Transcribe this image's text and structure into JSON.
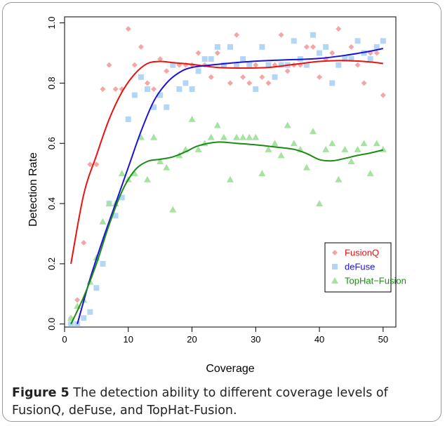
{
  "chart_data": {
    "type": "scatter",
    "xlabel": "Coverage",
    "ylabel": "Detection Rate",
    "xlim": [
      0,
      52
    ],
    "ylim": [
      -0.01,
      1.02
    ],
    "x_ticks": [
      0,
      10,
      20,
      30,
      40,
      50
    ],
    "y_ticks": [
      0.0,
      0.2,
      0.4,
      0.6,
      0.8,
      1.0
    ],
    "y_tick_labels": [
      "0.0",
      "0.2",
      "0.4",
      "0.6",
      "0.8",
      "1.0"
    ],
    "grid": false,
    "legend_position": "bottom-right",
    "series": [
      {
        "name": "FusionQ",
        "marker": "diamond",
        "point_color": "#f4a6a6",
        "line_color": "#e8130f",
        "points": [
          [
            1,
            0.02
          ],
          [
            2,
            0.08
          ],
          [
            3,
            0.27
          ],
          [
            4,
            0.53
          ],
          [
            5,
            0.53
          ],
          [
            6,
            0.78
          ],
          [
            7,
            0.86
          ],
          [
            8,
            0.78
          ],
          [
            9,
            0.78
          ],
          [
            10,
            0.98
          ],
          [
            11,
            0.86
          ],
          [
            12,
            0.92
          ],
          [
            13,
            0.8
          ],
          [
            14,
            0.78
          ],
          [
            15,
            0.88
          ],
          [
            16,
            0.84
          ],
          [
            17,
            0.86
          ],
          [
            18,
            0.86
          ],
          [
            19,
            0.86
          ],
          [
            20,
            0.86
          ],
          [
            21,
            0.9
          ],
          [
            22,
            0.86
          ],
          [
            23,
            0.82
          ],
          [
            24,
            0.9
          ],
          [
            25,
            0.86
          ],
          [
            26,
            0.8
          ],
          [
            27,
            0.96
          ],
          [
            28,
            0.82
          ],
          [
            29,
            0.8
          ],
          [
            30,
            0.86
          ],
          [
            31,
            0.82
          ],
          [
            32,
            0.8
          ],
          [
            33,
            0.86
          ],
          [
            34,
            0.96
          ],
          [
            35,
            0.84
          ],
          [
            36,
            0.86
          ],
          [
            37,
            0.86
          ],
          [
            38,
            0.92
          ],
          [
            39,
            0.92
          ],
          [
            40,
            0.82
          ],
          [
            41,
            0.88
          ],
          [
            42,
            0.9
          ],
          [
            43,
            0.98
          ],
          [
            44,
            0.88
          ],
          [
            45,
            0.92
          ],
          [
            46,
            0.86
          ],
          [
            47,
            0.8
          ],
          [
            48,
            0.9
          ],
          [
            49,
            0.9
          ],
          [
            50,
            0.76
          ]
        ],
        "fit": [
          [
            1,
            0.2
          ],
          [
            3,
            0.43
          ],
          [
            5,
            0.56
          ],
          [
            7,
            0.68
          ],
          [
            9,
            0.77
          ],
          [
            11,
            0.83
          ],
          [
            13,
            0.865
          ],
          [
            15,
            0.872
          ],
          [
            17,
            0.868
          ],
          [
            20,
            0.862
          ],
          [
            24,
            0.852
          ],
          [
            28,
            0.85
          ],
          [
            32,
            0.852
          ],
          [
            36,
            0.862
          ],
          [
            40,
            0.872
          ],
          [
            44,
            0.875
          ],
          [
            48,
            0.87
          ],
          [
            50,
            0.865
          ]
        ]
      },
      {
        "name": "deFuse",
        "marker": "square",
        "point_color": "#b3d6f7",
        "line_color": "#1a12d8",
        "points": [
          [
            1,
            0.0
          ],
          [
            2,
            0.0
          ],
          [
            3,
            0.02
          ],
          [
            4,
            0.04
          ],
          [
            5,
            0.12
          ],
          [
            6,
            0.2
          ],
          [
            7,
            0.4
          ],
          [
            8,
            0.36
          ],
          [
            9,
            0.42
          ],
          [
            10,
            0.68
          ],
          [
            11,
            0.76
          ],
          [
            12,
            0.82
          ],
          [
            13,
            0.78
          ],
          [
            14,
            0.72
          ],
          [
            15,
            0.76
          ],
          [
            16,
            0.72
          ],
          [
            17,
            0.86
          ],
          [
            18,
            0.78
          ],
          [
            19,
            0.8
          ],
          [
            20,
            0.78
          ],
          [
            21,
            0.84
          ],
          [
            22,
            0.88
          ],
          [
            23,
            0.88
          ],
          [
            24,
            0.92
          ],
          [
            25,
            0.86
          ],
          [
            26,
            0.92
          ],
          [
            27,
            0.86
          ],
          [
            28,
            0.88
          ],
          [
            29,
            0.86
          ],
          [
            30,
            0.78
          ],
          [
            31,
            0.92
          ],
          [
            32,
            0.86
          ],
          [
            33,
            0.82
          ],
          [
            34,
            0.86
          ],
          [
            35,
            0.86
          ],
          [
            36,
            0.94
          ],
          [
            37,
            0.88
          ],
          [
            38,
            0.86
          ],
          [
            39,
            0.96
          ],
          [
            40,
            0.9
          ],
          [
            41,
            0.92
          ],
          [
            42,
            0.8
          ],
          [
            43,
            0.86
          ],
          [
            44,
            0.88
          ],
          [
            45,
            0.88
          ],
          [
            46,
            0.94
          ],
          [
            47,
            0.9
          ],
          [
            48,
            0.88
          ],
          [
            49,
            0.92
          ],
          [
            50,
            0.94
          ]
        ],
        "fit": [
          [
            2,
            0.0
          ],
          [
            4,
            0.15
          ],
          [
            6,
            0.28
          ],
          [
            8,
            0.4
          ],
          [
            10,
            0.52
          ],
          [
            12,
            0.64
          ],
          [
            14,
            0.74
          ],
          [
            16,
            0.8
          ],
          [
            18,
            0.835
          ],
          [
            20,
            0.852
          ],
          [
            24,
            0.862
          ],
          [
            28,
            0.87
          ],
          [
            32,
            0.875
          ],
          [
            36,
            0.878
          ],
          [
            40,
            0.882
          ],
          [
            44,
            0.892
          ],
          [
            48,
            0.906
          ],
          [
            50,
            0.915
          ]
        ]
      },
      {
        "name": "TopHat−Fusion",
        "marker": "triangle",
        "point_color": "#a6e2a0",
        "line_color": "#1b8a14",
        "points": [
          [
            1,
            0.02
          ],
          [
            2,
            0.06
          ],
          [
            3,
            0.08
          ],
          [
            4,
            0.14
          ],
          [
            5,
            0.22
          ],
          [
            6,
            0.34
          ],
          [
            7,
            0.4
          ],
          [
            8,
            0.4
          ],
          [
            9,
            0.5
          ],
          [
            10,
            0.48
          ],
          [
            11,
            0.5
          ],
          [
            12,
            0.62
          ],
          [
            13,
            0.48
          ],
          [
            14,
            0.62
          ],
          [
            15,
            0.54
          ],
          [
            16,
            0.52
          ],
          [
            17,
            0.38
          ],
          [
            18,
            0.56
          ],
          [
            19,
            0.58
          ],
          [
            20,
            0.68
          ],
          [
            21,
            0.58
          ],
          [
            22,
            0.6
          ],
          [
            23,
            0.62
          ],
          [
            24,
            0.66
          ],
          [
            25,
            0.62
          ],
          [
            26,
            0.48
          ],
          [
            27,
            0.62
          ],
          [
            28,
            0.62
          ],
          [
            29,
            0.62
          ],
          [
            30,
            0.62
          ],
          [
            31,
            0.5
          ],
          [
            32,
            0.58
          ],
          [
            33,
            0.6
          ],
          [
            34,
            0.56
          ],
          [
            35,
            0.66
          ],
          [
            36,
            0.6
          ],
          [
            37,
            0.58
          ],
          [
            38,
            0.52
          ],
          [
            39,
            0.64
          ],
          [
            40,
            0.4
          ],
          [
            41,
            0.58
          ],
          [
            42,
            0.6
          ],
          [
            43,
            0.48
          ],
          [
            44,
            0.58
          ],
          [
            45,
            0.54
          ],
          [
            46,
            0.58
          ],
          [
            47,
            0.6
          ],
          [
            48,
            0.5
          ],
          [
            49,
            0.6
          ],
          [
            50,
            0.58
          ]
        ],
        "fit": [
          [
            1,
            0.0
          ],
          [
            3,
            0.09
          ],
          [
            5,
            0.2
          ],
          [
            7,
            0.33
          ],
          [
            9,
            0.44
          ],
          [
            11,
            0.51
          ],
          [
            13,
            0.54
          ],
          [
            15,
            0.547
          ],
          [
            17,
            0.555
          ],
          [
            19,
            0.572
          ],
          [
            21,
            0.592
          ],
          [
            24,
            0.604
          ],
          [
            27,
            0.6
          ],
          [
            30,
            0.595
          ],
          [
            33,
            0.588
          ],
          [
            36,
            0.58
          ],
          [
            38,
            0.566
          ],
          [
            40,
            0.546
          ],
          [
            42,
            0.542
          ],
          [
            44,
            0.55
          ],
          [
            46,
            0.56
          ],
          [
            48,
            0.568
          ],
          [
            50,
            0.578
          ]
        ]
      }
    ]
  },
  "caption": {
    "label": "Figure 5",
    "text": " The detection ability to different coverage levels of FusionQ, deFuse, and TopHat-Fusion."
  }
}
